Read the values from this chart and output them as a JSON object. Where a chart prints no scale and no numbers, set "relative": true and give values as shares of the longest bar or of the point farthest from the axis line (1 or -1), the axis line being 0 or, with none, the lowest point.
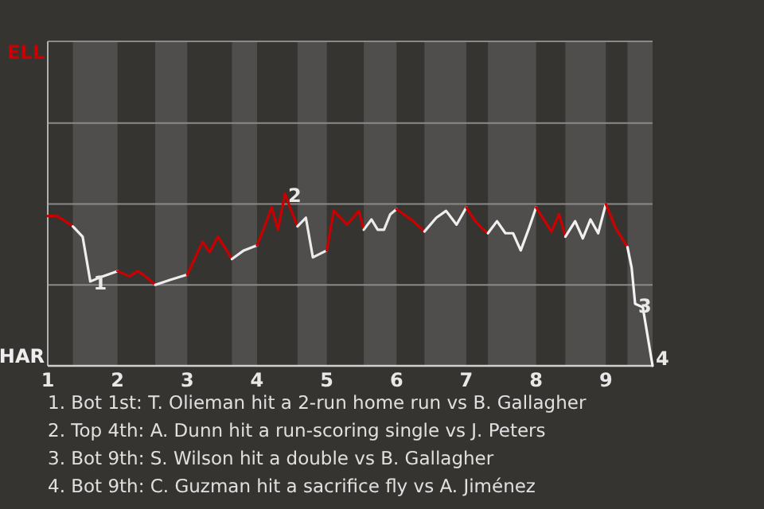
{
  "chart_data": {
    "type": "line",
    "relative": true,
    "xlim": [
      1,
      9.67
    ],
    "xticks": [
      1,
      2,
      3,
      4,
      5,
      6,
      7,
      8,
      9
    ],
    "series": [
      {
        "name": "ELL",
        "color": "#cc0000",
        "x": [
          1,
          1.13,
          1.25,
          1.36
        ],
        "values": [
          0.87,
          0.87,
          0.84,
          0.81
        ]
      },
      {
        "name": "HAR",
        "color": "#eeeeee",
        "x": [
          1.36,
          1.5,
          1.61,
          1.79,
          2
        ],
        "values": [
          0.81,
          0.75,
          0.49,
          0.52,
          0.55
        ]
      },
      {
        "color": "#cb0000",
        "x": [
          2,
          2.17,
          2.29,
          2.4,
          2.54
        ],
        "values": [
          0.55,
          0.52,
          0.55,
          0.52,
          0.47
        ]
      },
      {
        "color": "#ededed",
        "x": [
          2.54,
          2.76,
          3
        ],
        "values": [
          0.47,
          0.5,
          0.53
        ]
      },
      {
        "color": "#ca0000",
        "x": [
          3,
          3.22,
          3.32,
          3.44,
          3.64
        ],
        "values": [
          0.53,
          0.72,
          0.66,
          0.75,
          0.62
        ]
      },
      {
        "color": "#ececec",
        "x": [
          3.64,
          3.81,
          4
        ],
        "values": [
          0.62,
          0.67,
          0.7
        ]
      },
      {
        "color": "#c90000",
        "x": [
          4,
          4.1,
          4.21,
          4.3,
          4.4,
          4.5,
          4.58
        ],
        "values": [
          0.7,
          0.8,
          0.92,
          0.79,
          1,
          0.89,
          0.81
        ]
      },
      {
        "color": "#ebebeb",
        "x": [
          4.58,
          4.7,
          4.8,
          5
        ],
        "values": [
          0.81,
          0.86,
          0.63,
          0.67
        ]
      },
      {
        "color": "#c80000",
        "x": [
          5,
          5.1,
          5.29,
          5.46,
          5.53
        ],
        "values": [
          0.67,
          0.9,
          0.82,
          0.9,
          0.79
        ]
      },
      {
        "color": "#eaeaea",
        "x": [
          5.53,
          5.64,
          5.73,
          5.82,
          5.91,
          6
        ],
        "values": [
          0.79,
          0.85,
          0.79,
          0.79,
          0.88,
          0.91
        ]
      },
      {
        "color": "#cd0000",
        "x": [
          6,
          6.24,
          6.4
        ],
        "values": [
          0.91,
          0.84,
          0.78
        ]
      },
      {
        "color": "#efefef",
        "x": [
          6.4,
          6.57,
          6.71,
          6.86,
          7
        ],
        "values": [
          0.78,
          0.86,
          0.9,
          0.82,
          0.92
        ]
      },
      {
        "color": "#ce0000",
        "x": [
          7,
          7.11,
          7.22,
          7.31
        ],
        "values": [
          0.92,
          0.85,
          0.8,
          0.77
        ]
      },
      {
        "color": "#f0f0f0",
        "x": [
          7.31,
          7.44,
          7.56,
          7.67,
          7.78,
          7.89,
          8
        ],
        "values": [
          0.77,
          0.84,
          0.77,
          0.77,
          0.67,
          0.79,
          0.92
        ]
      },
      {
        "color": "#cf0000",
        "x": [
          8,
          8.22,
          8.33,
          8.42
        ],
        "values": [
          0.92,
          0.78,
          0.88,
          0.75
        ]
      },
      {
        "color": "#f1f1f1",
        "x": [
          8.42,
          8.56,
          8.67,
          8.78,
          8.89,
          9
        ],
        "values": [
          0.75,
          0.84,
          0.74,
          0.85,
          0.77,
          0.94
        ]
      },
      {
        "color": "#d00000",
        "x": [
          9,
          9.14,
          9.31
        ],
        "values": [
          0.94,
          0.8,
          0.69
        ]
      },
      {
        "color": "#f2f2f2",
        "x": [
          9.31,
          9.37,
          9.42,
          9.53,
          9.67
        ],
        "values": [
          0.69,
          0.57,
          0.36,
          0.34,
          0
        ]
      }
    ],
    "ref_lines": [
      {
        "axis": "y",
        "value": 0.47,
        "color": "#8a8a8a"
      },
      {
        "axis": "y",
        "value": 0.94,
        "color": "#8a8a8a"
      },
      {
        "axis": "y",
        "value": 1.41,
        "color": "#8a8a8a"
      }
    ],
    "bands": [
      {
        "axis": "x",
        "from": 1.36,
        "to": 2,
        "color": "#4f4e4c"
      },
      {
        "axis": "x",
        "from": 2.54,
        "to": 3,
        "color": "#4f4e4c"
      },
      {
        "axis": "x",
        "from": 3.64,
        "to": 4,
        "color": "#4f4e4c"
      },
      {
        "axis": "x",
        "from": 4.58,
        "to": 5,
        "color": "#4f4e4c"
      },
      {
        "axis": "x",
        "from": 5.53,
        "to": 6,
        "color": "#4f4e4c"
      },
      {
        "axis": "x",
        "from": 6.4,
        "to": 7,
        "color": "#4f4e4c"
      },
      {
        "axis": "x",
        "from": 7.31,
        "to": 8,
        "color": "#4f4e4c"
      },
      {
        "axis": "x",
        "from": 8.42,
        "to": 9,
        "color": "#4f4e4c"
      },
      {
        "axis": "x",
        "from": 9.31,
        "to": 9.67,
        "color": "#4f4e4c"
      }
    ],
    "annotations": [
      {
        "text": "1",
        "x": 1.61,
        "y": 0.49
      },
      {
        "text": "2",
        "x": 4.4,
        "y": 1
      },
      {
        "text": "3",
        "x": 9.42,
        "y": 0.36
      },
      {
        "text": "4",
        "x": 9.67,
        "y": 0
      },
      "1. Bot 1st: T. Olieman hit a 2-run home run vs B. Gallagher",
      "2. Top 4th: A. Dunn hit a run-scoring single vs J. Peters",
      "3. Bot 9th: S. Wilson hit a double vs B. Gallagher",
      "4. Bot 9th: C. Guzman hit a sacrifice fly vs A. Jiménez"
    ]
  }
}
